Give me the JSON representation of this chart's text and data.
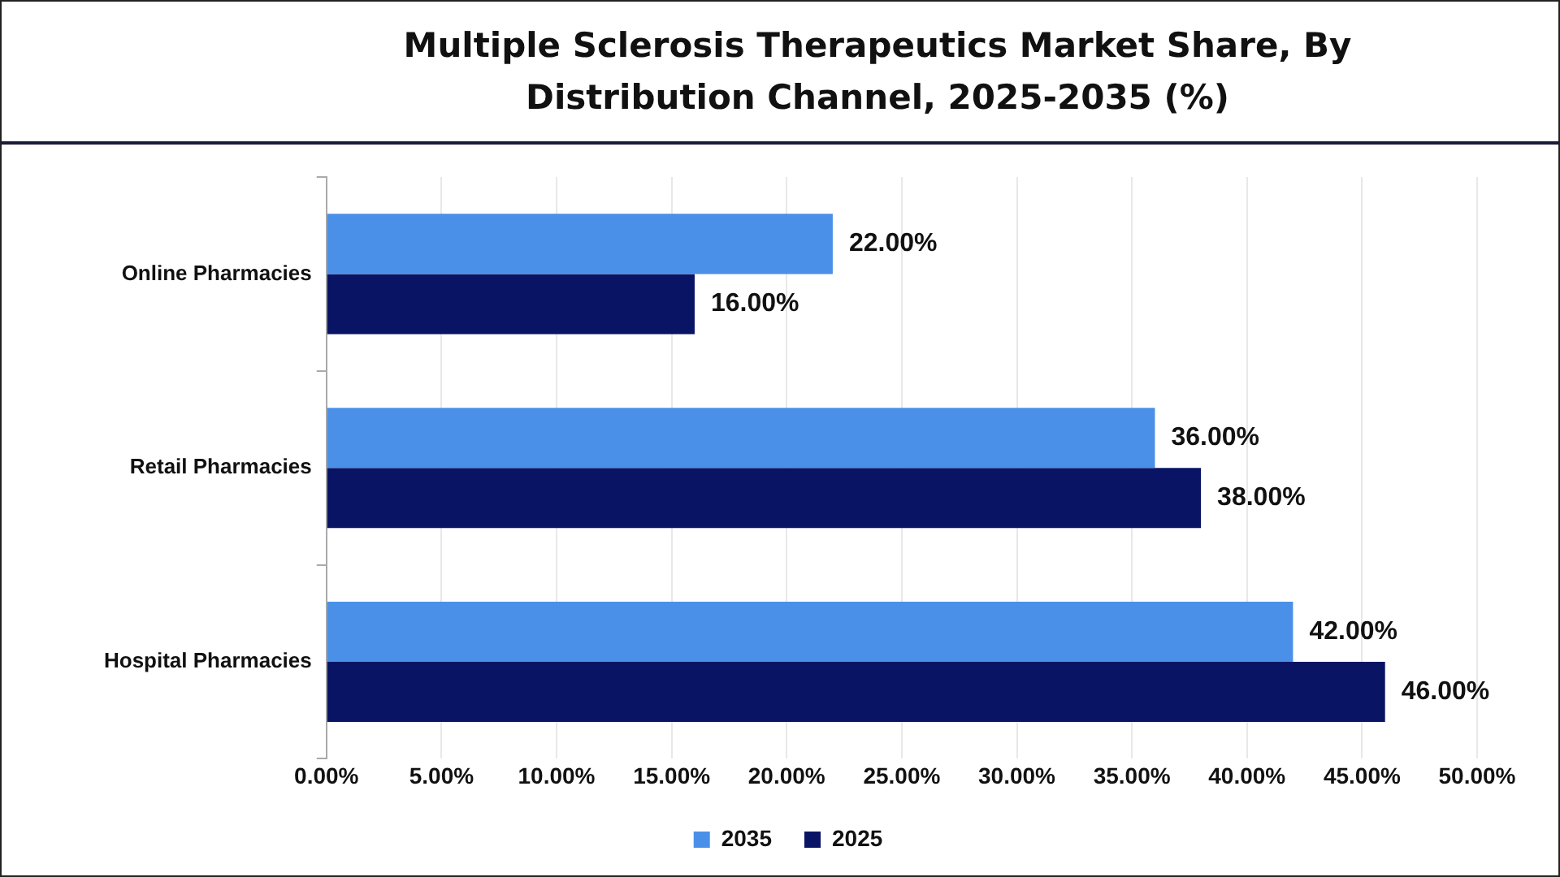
{
  "chart_data": {
    "type": "bar",
    "orientation": "horizontal",
    "title": "Multiple Sclerosis Therapeutics Market Share, By Distribution Channel, 2025-2035 (%)",
    "categories": [
      "Online Pharmacies",
      "Retail Pharmacies",
      "Hospital Pharmacies"
    ],
    "series": [
      {
        "name": "2035",
        "color": "#4a90e8",
        "values": [
          22,
          36,
          42
        ],
        "value_labels": [
          "22.00%",
          "36.00%",
          "42.00%"
        ]
      },
      {
        "name": "2025",
        "color": "#0a1464",
        "values": [
          16,
          38,
          46
        ],
        "value_labels": [
          "16.00%",
          "38.00%",
          "46.00%"
        ]
      }
    ],
    "xlim": [
      0,
      50
    ],
    "xticks": [
      {
        "value": 0,
        "label": "0.00%"
      },
      {
        "value": 5,
        "label": "5.00%"
      },
      {
        "value": 10,
        "label": "10.00%"
      },
      {
        "value": 15,
        "label": "15.00%"
      },
      {
        "value": 20,
        "label": "20.00%"
      },
      {
        "value": 25,
        "label": "25.00%"
      },
      {
        "value": 30,
        "label": "30.00%"
      },
      {
        "value": 35,
        "label": "35.00%"
      },
      {
        "value": 40,
        "label": "40.00%"
      },
      {
        "value": 45,
        "label": "45.00%"
      },
      {
        "value": 50,
        "label": "50.00%"
      }
    ],
    "grid": "x",
    "legend": "bottom"
  }
}
